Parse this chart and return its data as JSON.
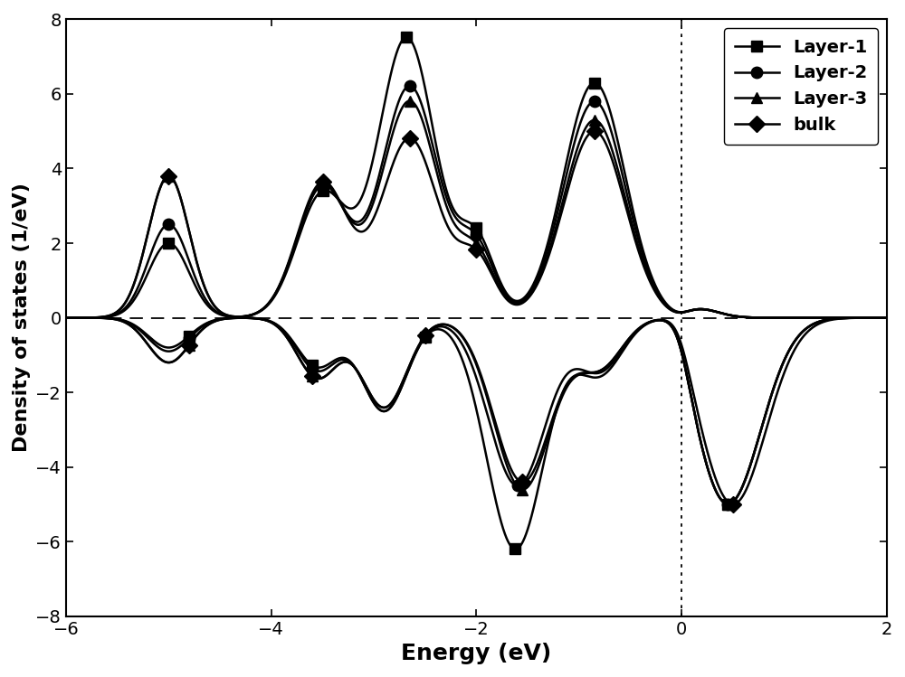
{
  "title": "",
  "xlabel": "Energy (eV)",
  "ylabel": "Density of states (1/eV)",
  "xlim": [
    -6,
    2
  ],
  "ylim": [
    -8,
    8
  ],
  "xticks": [
    -6,
    -4,
    -2,
    0,
    2
  ],
  "yticks": [
    -8,
    -6,
    -4,
    -2,
    0,
    2,
    4,
    6,
    8
  ],
  "legend_labels": [
    "Layer-1",
    "Layer-2",
    "Layer-3",
    "bulk"
  ],
  "markers": [
    "s",
    "o",
    "^",
    "D"
  ],
  "color": "#000000",
  "background_color": "#ffffff",
  "xlabel_fontsize": 18,
  "ylabel_fontsize": 16,
  "tick_fontsize": 14,
  "legend_fontsize": 14,
  "linewidth": 1.8,
  "markersize": 9
}
